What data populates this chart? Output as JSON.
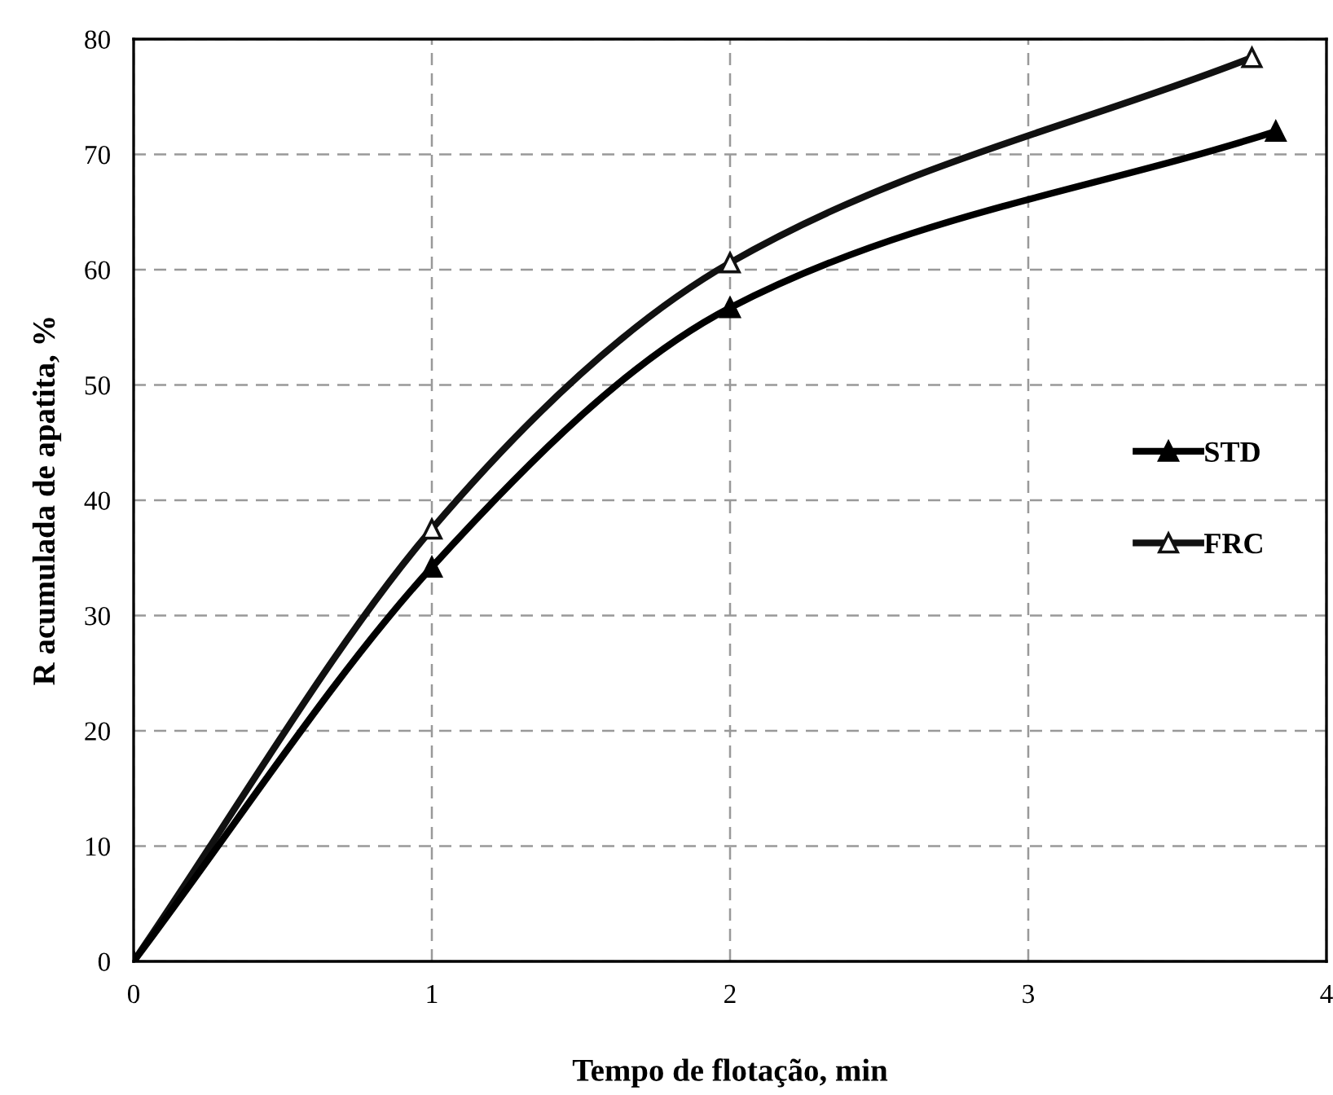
{
  "chart_data": {
    "type": "line",
    "xlabel": "Tempo de flotação, min",
    "ylabel": "R acumulada de apatita, %",
    "x": [
      0,
      1,
      2,
      3.83
    ],
    "series": [
      {
        "name": "STD",
        "color": "#000000",
        "marker": "triangle",
        "values": [
          0,
          34.2,
          56.7,
          72.0
        ]
      },
      {
        "name": "FRC",
        "color": "#111111",
        "marker": "triangle",
        "x": [
          0,
          1,
          2,
          3.75
        ],
        "values": [
          0,
          37.5,
          60.6,
          78.4
        ]
      }
    ],
    "xlim": [
      0,
      4
    ],
    "xticks": [
      0,
      1,
      2,
      3,
      4
    ],
    "ylim": [
      0,
      80
    ],
    "yticks": [
      0,
      10,
      20,
      30,
      40,
      50,
      60,
      70,
      80
    ],
    "grid": true,
    "legend": "right",
    "line_style": "solid"
  }
}
